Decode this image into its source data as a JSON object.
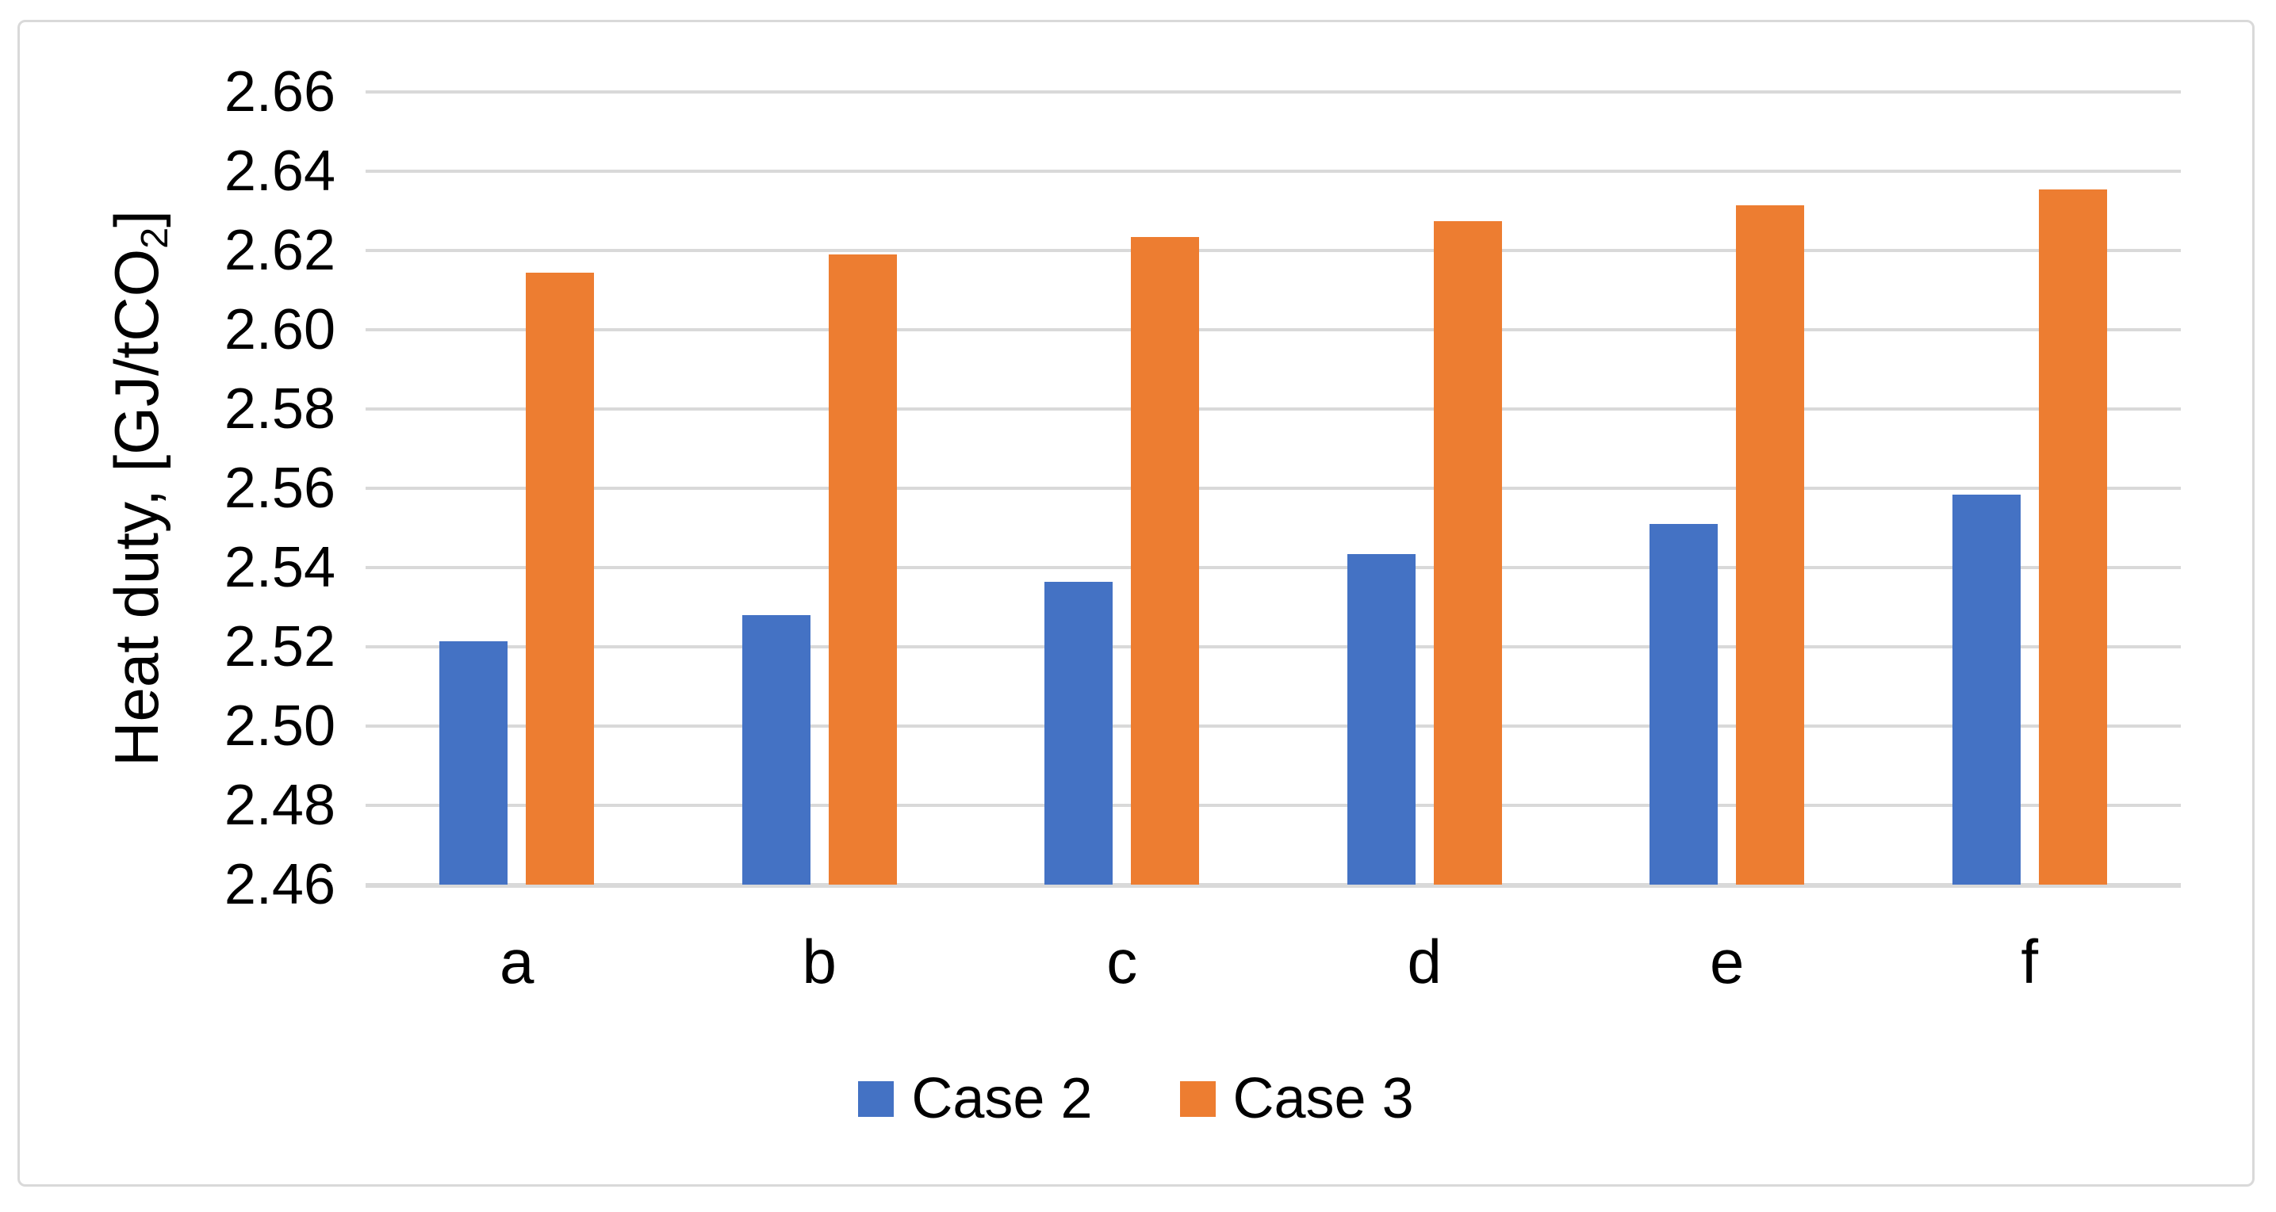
{
  "chart_data": {
    "type": "bar",
    "title": "",
    "xlabel": "",
    "ylabel": {
      "prefix": "Heat duty, [GJ/tCO",
      "sub": "2",
      "suffix": "]"
    },
    "categories": [
      "a",
      "b",
      "c",
      "d",
      "e",
      "f"
    ],
    "series": [
      {
        "name": "Case 2",
        "color": "#4472C4",
        "values": [
          2.5215,
          2.528,
          2.5365,
          2.5435,
          2.551,
          2.5585
        ]
      },
      {
        "name": "Case 3",
        "color": "#ED7D31",
        "values": [
          2.6145,
          2.619,
          2.6235,
          2.6275,
          2.6315,
          2.6355
        ]
      }
    ],
    "y_axis": {
      "min": 2.46,
      "max": 2.66,
      "step": 0.02,
      "tick_labels": [
        "2.46",
        "2.48",
        "2.50",
        "2.52",
        "2.54",
        "2.56",
        "2.58",
        "2.60",
        "2.62",
        "2.64",
        "2.66"
      ]
    },
    "ylim": [
      2.46,
      2.66
    ],
    "grid": true,
    "gridline_color": "#D9D9D9",
    "legend": {
      "position": "bottom",
      "entries": [
        "Case 2",
        "Case 3"
      ]
    }
  },
  "colors": {
    "background": "#FFFFFF",
    "border": "#D9D9D9",
    "text": "#000000",
    "case2": "#4472C4",
    "case3": "#ED7D31"
  }
}
